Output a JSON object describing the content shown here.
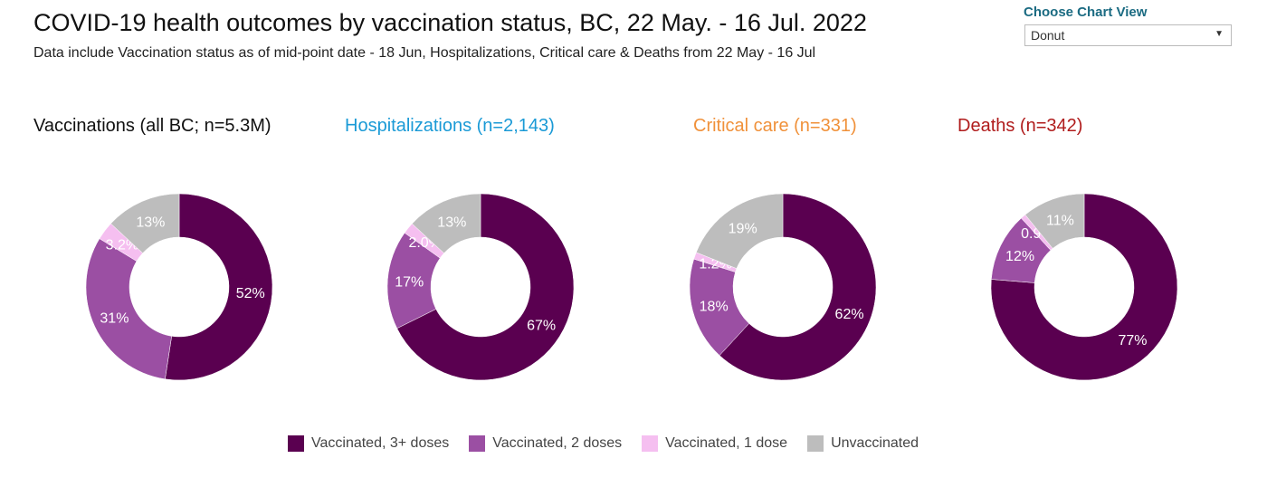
{
  "header": {
    "title": "COVID-19 health outcomes by vaccination status, BC,  22 May. - 16 Jul. 2022",
    "subtitle": "Data include Vaccination status as of mid-point date - 18 Jun, Hospitalizations, Critical care & Deaths from 22 May - 16 Jul"
  },
  "control": {
    "label": "Choose Chart View",
    "value": "Donut"
  },
  "colors": {
    "dose3": "#5a0050",
    "dose2": "#9b4fa3",
    "dose1": "#f5bff0",
    "unvax": "#bdbdbd"
  },
  "chart_data": [
    {
      "type": "pie",
      "title": "Vaccinations (all BC; n=5.3M)",
      "title_color": "#111111",
      "categories": [
        "Vaccinated, 3+ doses",
        "Vaccinated, 2 doses",
        "Vaccinated, 1 dose",
        "Unvaccinated"
      ],
      "values": [
        52,
        31,
        3.2,
        13
      ],
      "labels": [
        "52%",
        "31%",
        "3.2%",
        "13%"
      ]
    },
    {
      "type": "pie",
      "title": "Hospitalizations (n=2,143)",
      "title_color": "#1a9ad6",
      "categories": [
        "Vaccinated, 3+ doses",
        "Vaccinated, 2 doses",
        "Vaccinated, 1 dose",
        "Unvaccinated"
      ],
      "values": [
        67,
        17,
        2.0,
        13
      ],
      "labels": [
        "67%",
        "17%",
        "2.0%",
        "13%"
      ]
    },
    {
      "type": "pie",
      "title": "Critical care (n=331)",
      "title_color": "#f0913a",
      "categories": [
        "Vaccinated, 3+ doses",
        "Vaccinated, 2 doses",
        "Vaccinated, 1 dose",
        "Unvaccinated"
      ],
      "values": [
        62,
        18,
        1.2,
        19
      ],
      "labels": [
        "62%",
        "18%",
        "1.2%",
        "19%"
      ]
    },
    {
      "type": "pie",
      "title": "Deaths (n=342)",
      "title_color": "#b01c1c",
      "categories": [
        "Vaccinated, 3+ doses",
        "Vaccinated, 2 doses",
        "Vaccinated, 1 dose",
        "Unvaccinated"
      ],
      "values": [
        77,
        12,
        0.9,
        11
      ],
      "labels": [
        "77%",
        "12%",
        "0.9%",
        "11%"
      ]
    }
  ],
  "legend": [
    "Vaccinated, 3+ doses",
    "Vaccinated, 2 doses",
    "Vaccinated, 1 dose",
    "Unvaccinated"
  ]
}
